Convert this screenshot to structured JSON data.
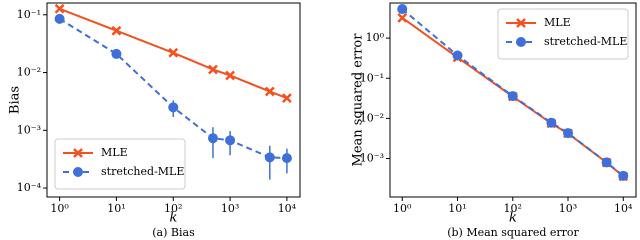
{
  "chart_data": [
    {
      "type": "line",
      "caption": "(a) Bias",
      "xlabel": "k",
      "ylabel": "Bias",
      "xscale": "log",
      "yscale": "log",
      "x": [
        1,
        10,
        100,
        500,
        1000,
        5000,
        10000
      ],
      "xlim": [
        0.6,
        17000
      ],
      "xticks": [
        {
          "value": 1,
          "label": "10⁰"
        },
        {
          "value": 10,
          "label": "10¹"
        },
        {
          "value": 100,
          "label": "10²"
        },
        {
          "value": 1000,
          "label": "10³"
        },
        {
          "value": 10000,
          "label": "10⁴"
        }
      ],
      "ylim": [
        7e-05,
        0.16
      ],
      "yticks": [
        {
          "value": 0.0001,
          "label": "10⁻⁴"
        },
        {
          "value": 0.001,
          "label": "10⁻³"
        },
        {
          "value": 0.01,
          "label": "10⁻²"
        },
        {
          "value": 0.1,
          "label": "10⁻¹"
        }
      ],
      "legend": "lower-left",
      "series": [
        {
          "name": "MLE",
          "color": "#f4511e",
          "marker": "x",
          "linestyle": "solid",
          "values": [
            0.127,
            0.053,
            0.022,
            0.0113,
            0.0089,
            0.0047,
            0.0036
          ]
        },
        {
          "name": "stretched-MLE",
          "color": "#3f6fd8",
          "marker": "o",
          "linestyle": "dashed",
          "values": [
            0.085,
            0.021,
            0.0025,
            0.00073,
            0.00067,
            0.00034,
            0.00033
          ],
          "yerr": [
            0.003,
            0.0015,
            0.0008,
            0.0004,
            0.0003,
            0.0002,
            0.00015
          ]
        }
      ]
    },
    {
      "type": "line",
      "caption": "(b) Mean squared error",
      "xlabel": "k",
      "ylabel": "Mean squared error",
      "xscale": "log",
      "yscale": "log",
      "x": [
        1,
        10,
        100,
        500,
        1000,
        5000,
        10000
      ],
      "xlim": [
        0.6,
        17000
      ],
      "xticks": [
        {
          "value": 1,
          "label": "10⁰"
        },
        {
          "value": 10,
          "label": "10¹"
        },
        {
          "value": 100,
          "label": "10²"
        },
        {
          "value": 1000,
          "label": "10³"
        },
        {
          "value": 10000,
          "label": "10⁴"
        }
      ],
      "ylim": [
        0.00011,
        7.5
      ],
      "yticks": [
        {
          "value": 0.001,
          "label": "10⁻³"
        },
        {
          "value": 0.01,
          "label": "10⁻²"
        },
        {
          "value": 0.1,
          "label": "10⁻¹"
        },
        {
          "value": 1,
          "label": "10⁰"
        }
      ],
      "legend": "upper-right",
      "series": [
        {
          "name": "MLE",
          "color": "#f4511e",
          "marker": "x",
          "linestyle": "solid",
          "values": [
            3.2,
            0.33,
            0.035,
            0.0075,
            0.0042,
            0.00079,
            0.00036
          ]
        },
        {
          "name": "stretched-MLE",
          "color": "#3f6fd8",
          "marker": "o",
          "linestyle": "dashed",
          "values": [
            5.3,
            0.37,
            0.036,
            0.0078,
            0.0043,
            0.0008,
            0.00037
          ]
        }
      ]
    }
  ]
}
